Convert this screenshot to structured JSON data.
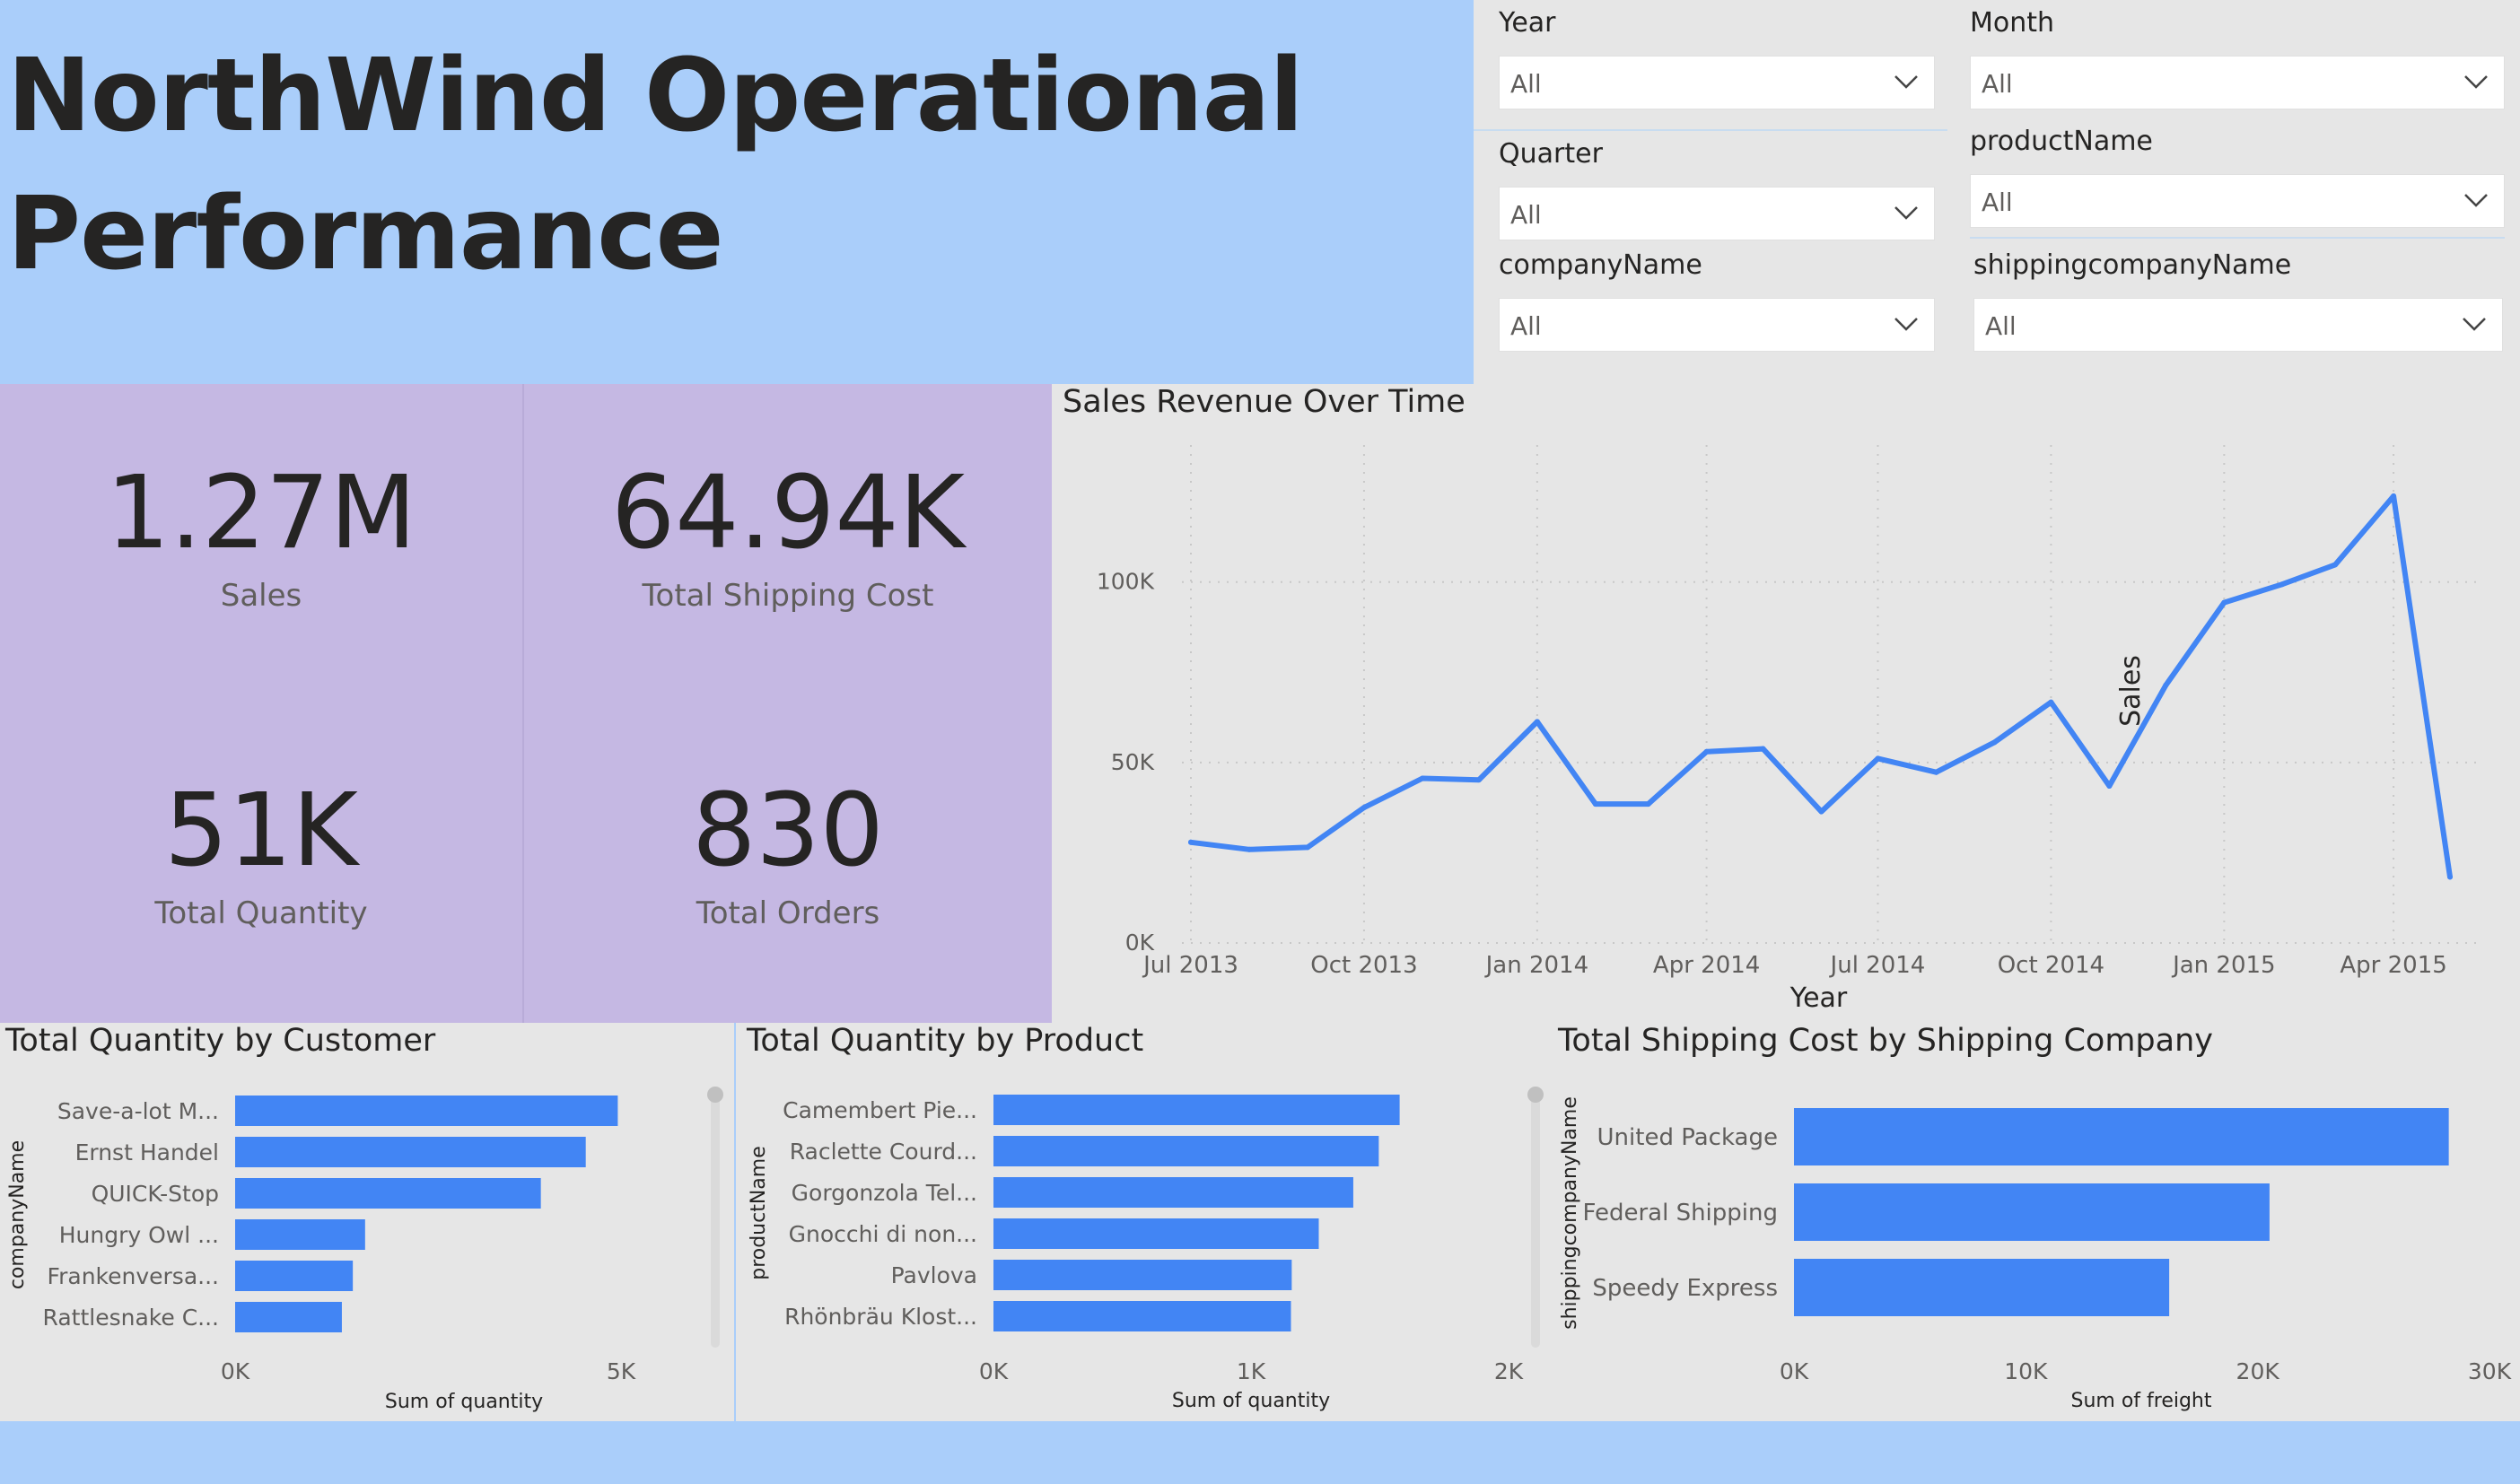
{
  "header": {
    "title_line1": "NorthWind Operational",
    "title_line2": "Performance"
  },
  "slicers": [
    {
      "label": "Year",
      "value": "All"
    },
    {
      "label": "Month",
      "value": "All"
    },
    {
      "label": "Quarter",
      "value": "All"
    },
    {
      "label": "productName",
      "value": "All"
    },
    {
      "label": "companyName",
      "value": "All"
    },
    {
      "label": "shippingcompanyName",
      "value": "All"
    }
  ],
  "kpis": [
    {
      "value": "1.27M",
      "label": "Sales"
    },
    {
      "value": "64.94K",
      "label": "Total Shipping Cost"
    },
    {
      "value": "51K",
      "label": "Total Quantity"
    },
    {
      "value": "830",
      "label": "Total Orders"
    }
  ],
  "colors": {
    "accent": "#4285f4",
    "header_bg": "#aacefa",
    "kpi_bg": "#c5b8e3",
    "panel_bg": "#e6e6e6"
  },
  "chart_data": [
    {
      "type": "line",
      "title": "Sales Revenue Over Time",
      "xlabel": "Year",
      "ylabel": "Sales",
      "x": [
        "2013-07",
        "2013-08",
        "2013-09",
        "2013-10",
        "2013-11",
        "2013-12",
        "2014-01",
        "2014-02",
        "2014-03",
        "2014-04",
        "2014-05",
        "2014-06",
        "2014-07",
        "2014-08",
        "2014-09",
        "2014-10",
        "2014-11",
        "2014-12",
        "2015-01",
        "2015-02",
        "2015-03",
        "2015-04",
        "2015-05"
      ],
      "values": [
        27900,
        25900,
        26500,
        37500,
        45600,
        45200,
        61300,
        38500,
        38500,
        53000,
        53800,
        36400,
        51100,
        47300,
        55600,
        66700,
        43500,
        71400,
        94300,
        99400,
        104800,
        123800,
        18300
      ],
      "x_ticks": [
        "Jul 2013",
        "Oct 2013",
        "Jan 2014",
        "Apr 2014",
        "Jul 2014",
        "Oct 2014",
        "Jan 2015",
        "Apr 2015"
      ],
      "y_ticks": [
        "0K",
        "50K",
        "100K"
      ],
      "ylim": [
        0,
        130000
      ],
      "grid": true
    },
    {
      "type": "bar",
      "orientation": "horizontal",
      "title": "Total Quantity by Customer",
      "xlabel": "Sum of quantity",
      "ylabel": "companyName",
      "categories": [
        "Save-a-lot M...",
        "Ernst Handel",
        "QUICK-Stop",
        "Hungry Owl ...",
        "Frankenversa...",
        "Rattlesnake C..."
      ],
      "values": [
        4958,
        4543,
        3961,
        1684,
        1525,
        1383
      ],
      "x_ticks": [
        "0K",
        "5K"
      ],
      "xlim": [
        0,
        5000
      ]
    },
    {
      "type": "bar",
      "orientation": "horizontal",
      "title": "Total Quantity by Product",
      "xlabel": "Sum of quantity",
      "ylabel": "productName",
      "categories": [
        "Camembert Pie...",
        "Raclette Courd...",
        "Gorgonzola Tel...",
        "Gnocchi di non...",
        "Pavlova",
        "Rhönbräu Klost..."
      ],
      "values": [
        1577,
        1496,
        1397,
        1263,
        1158,
        1155
      ],
      "x_ticks": [
        "0K",
        "1K",
        "2K"
      ],
      "xlim": [
        0,
        2000
      ]
    },
    {
      "type": "bar",
      "orientation": "horizontal",
      "title": "Total Shipping Cost by Shipping Company",
      "xlabel": "Sum of freight",
      "ylabel": "shippingcompanyName",
      "categories": [
        "United Package",
        "Federal Shipping",
        "Speedy Express"
      ],
      "values": [
        28244,
        20512,
        16185
      ],
      "x_ticks": [
        "0K",
        "10K",
        "20K",
        "30K"
      ],
      "xlim": [
        0,
        30000
      ]
    }
  ]
}
